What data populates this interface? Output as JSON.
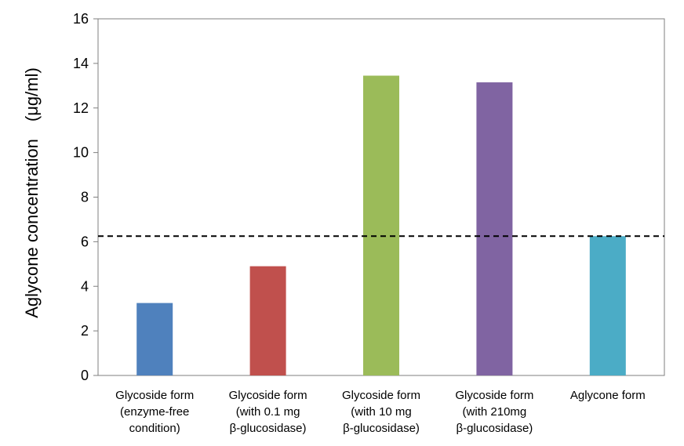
{
  "chart_data": {
    "type": "bar",
    "categories": [
      [
        "Glycoside form",
        "(enzyme-free",
        "condition)"
      ],
      [
        "Glycoside form",
        "(with 0.1 mg",
        "β-glucosidase)"
      ],
      [
        "Glycoside form",
        "(with 10 mg",
        "β-glucosidase)"
      ],
      [
        "Glycoside form",
        "(with 210mg",
        "β-glucosidase)"
      ],
      [
        "Aglycone form"
      ]
    ],
    "values": [
      3.25,
      4.9,
      13.45,
      13.15,
      6.25
    ],
    "colors": [
      "#4f81bd",
      "#c0504d",
      "#9bbb59",
      "#8064a2",
      "#4bacc6"
    ],
    "ylabel": "Aglycone concentration　(μg/ml)",
    "ylim": [
      0,
      16
    ],
    "yticks": [
      0,
      2,
      4,
      6,
      8,
      10,
      12,
      14,
      16
    ],
    "reference_line": {
      "value": 6.25,
      "style": "dashed",
      "color": "#000000"
    },
    "grid": false
  }
}
